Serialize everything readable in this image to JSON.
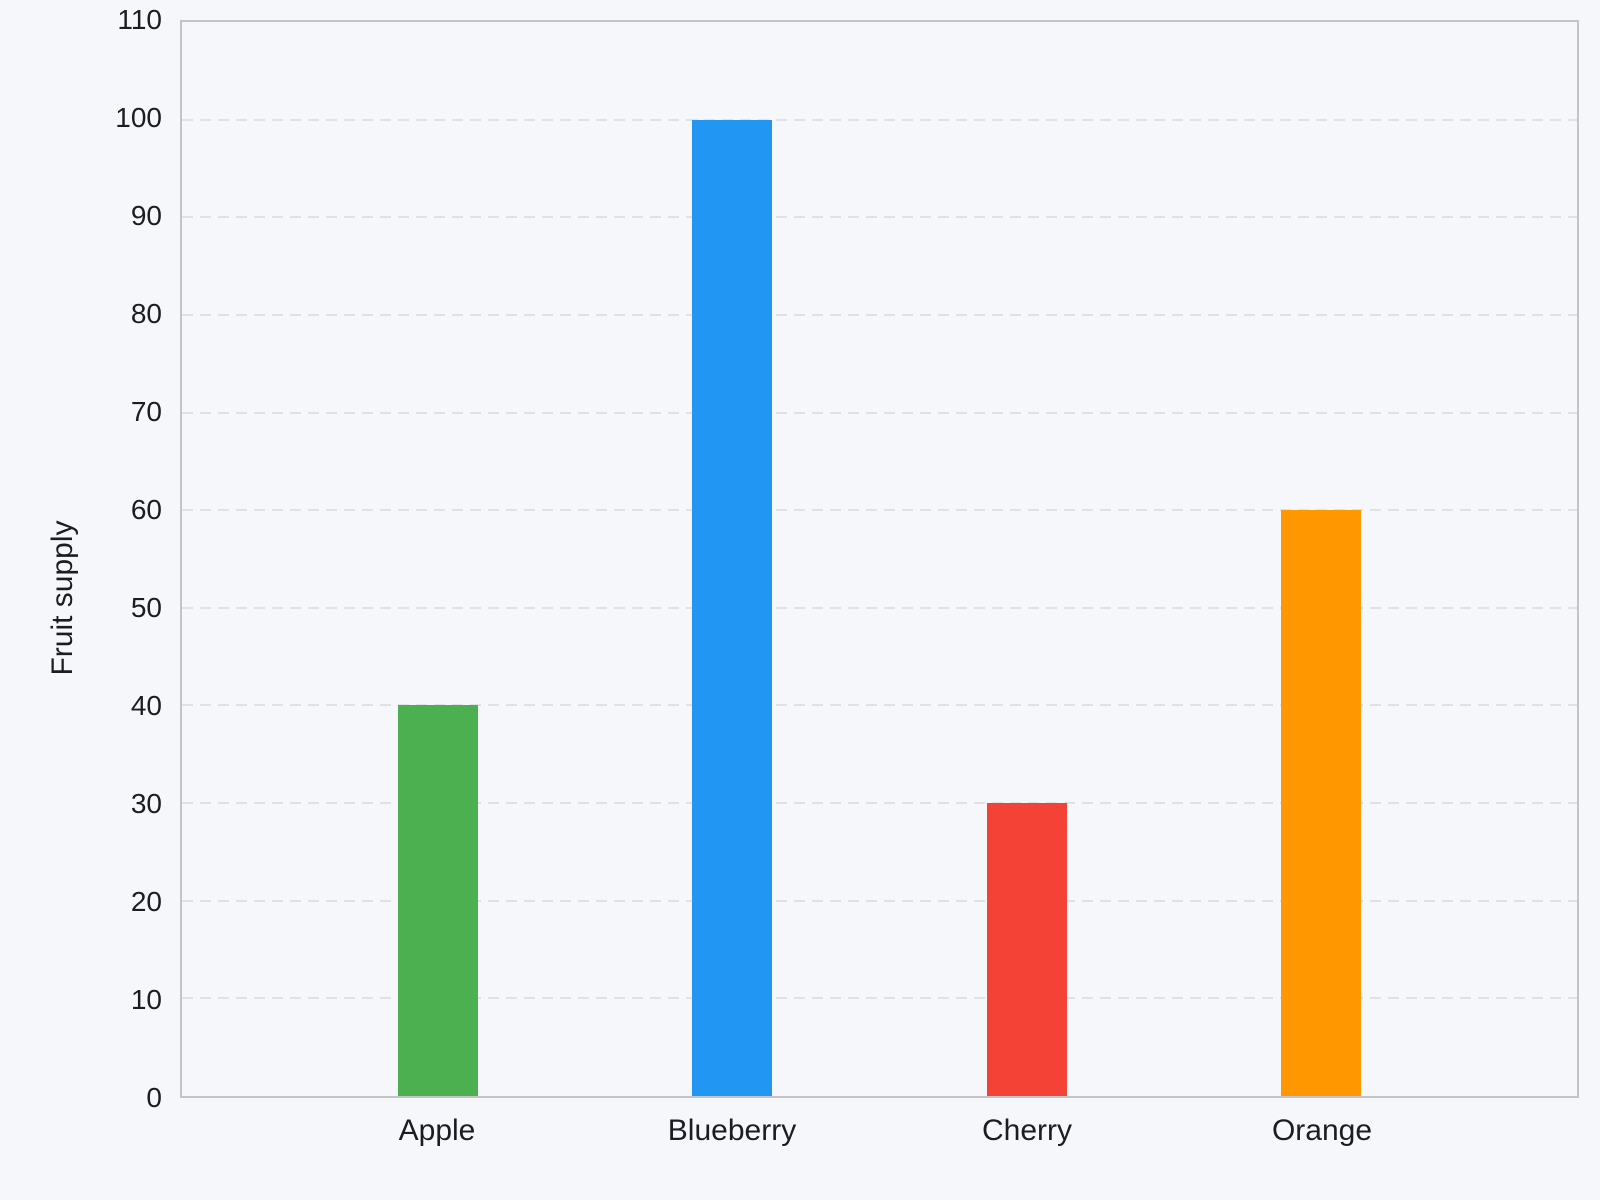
{
  "chart_data": {
    "type": "bar",
    "title": "",
    "xlabel": "",
    "ylabel": "Fruit supply",
    "categories": [
      "Apple",
      "Blueberry",
      "Cherry",
      "Orange"
    ],
    "values": [
      40,
      100,
      30,
      60
    ],
    "bar_colors": [
      "#4caf50",
      "#2196f3",
      "#f44336",
      "#ff9800"
    ],
    "ylim": [
      0,
      110
    ],
    "y_ticks": [
      0,
      10,
      20,
      30,
      40,
      50,
      60,
      70,
      80,
      90,
      100,
      110
    ],
    "grid": "horizontal-dashed",
    "legend_position": "none",
    "theme": {
      "background": "#f5f7fb",
      "plot_border": "#c3c4c8",
      "gridline": "#e0e1e4",
      "text": "#1b1d22"
    }
  }
}
